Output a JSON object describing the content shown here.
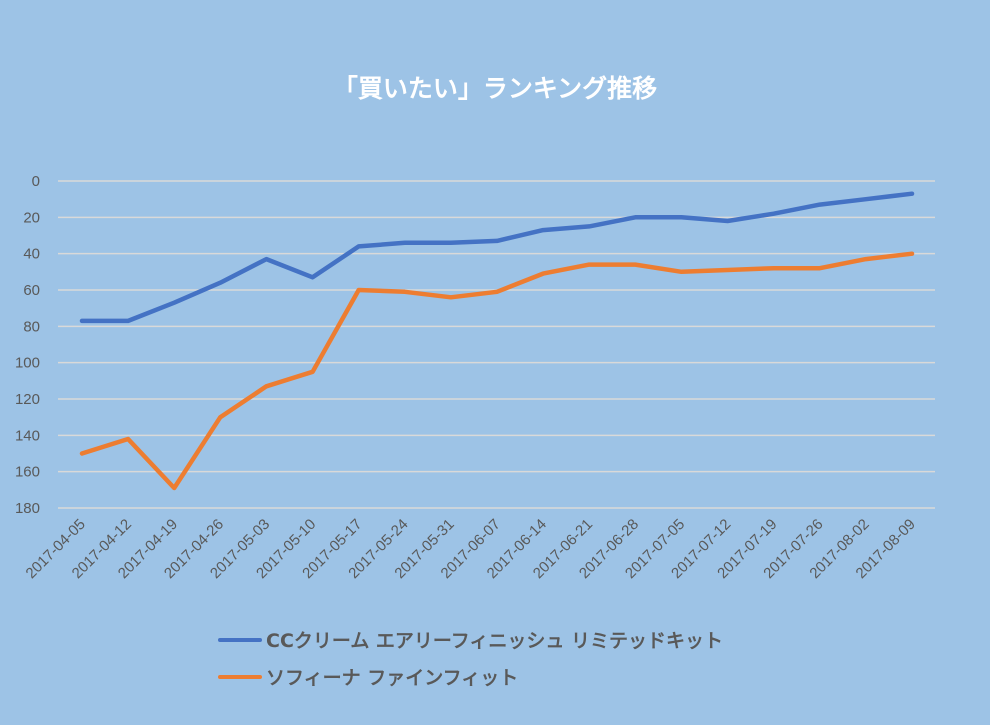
{
  "chart_data": {
    "type": "line",
    "title": "「買いたい」ランキング推移",
    "xlabel": "",
    "ylabel": "",
    "ylim": [
      0,
      180
    ],
    "y_inverted": true,
    "yticks": [
      0,
      20,
      40,
      60,
      80,
      100,
      120,
      140,
      160,
      180
    ],
    "grid": true,
    "legend_position": "bottom",
    "background_color": "#9dc3e6",
    "x": [
      "2017-04-05",
      "2017-04-12",
      "2017-04-19",
      "2017-04-26",
      "2017-05-03",
      "2017-05-10",
      "2017-05-17",
      "2017-05-24",
      "2017-05-31",
      "2017-06-07",
      "2017-06-14",
      "2017-06-21",
      "2017-06-28",
      "2017-07-05",
      "2017-07-12",
      "2017-07-19",
      "2017-07-26",
      "2017-08-02",
      "2017-08-09"
    ],
    "series": [
      {
        "name": "CCクリーム エアリーフィニッシュ リミテッドキット",
        "color": "#4472c4",
        "values": [
          77,
          77,
          67,
          56,
          43,
          53,
          36,
          34,
          34,
          33,
          27,
          25,
          20,
          20,
          22,
          18,
          13,
          10,
          7
        ]
      },
      {
        "name": "ソフィーナ ファインフィット",
        "color": "#ed7d31",
        "values": [
          150,
          142,
          169,
          130,
          113,
          105,
          60,
          61,
          64,
          61,
          51,
          46,
          46,
          50,
          49,
          48,
          48,
          43,
          40
        ]
      }
    ]
  }
}
